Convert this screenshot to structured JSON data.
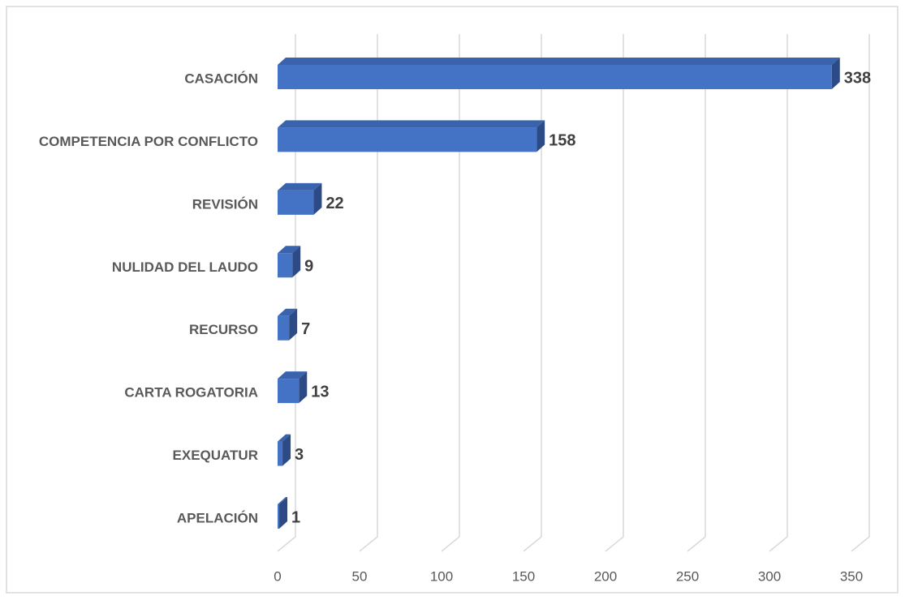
{
  "chart_data": {
    "type": "bar3d_horizontal",
    "categories": [
      "CASACIÓN",
      "COMPETENCIA POR CONFLICTO",
      "REVISIÓN",
      "NULIDAD DEL LAUDO",
      "RECURSO",
      "CARTA ROGATORIA",
      "EXEQUATUR",
      "APELACIÓN"
    ],
    "values": [
      338,
      158,
      22,
      9,
      7,
      13,
      3,
      1
    ],
    "color": "#4472c4",
    "xlim": [
      0,
      350
    ],
    "xticks": [
      0,
      50,
      100,
      150,
      200,
      250,
      300,
      350
    ],
    "grid": true
  }
}
